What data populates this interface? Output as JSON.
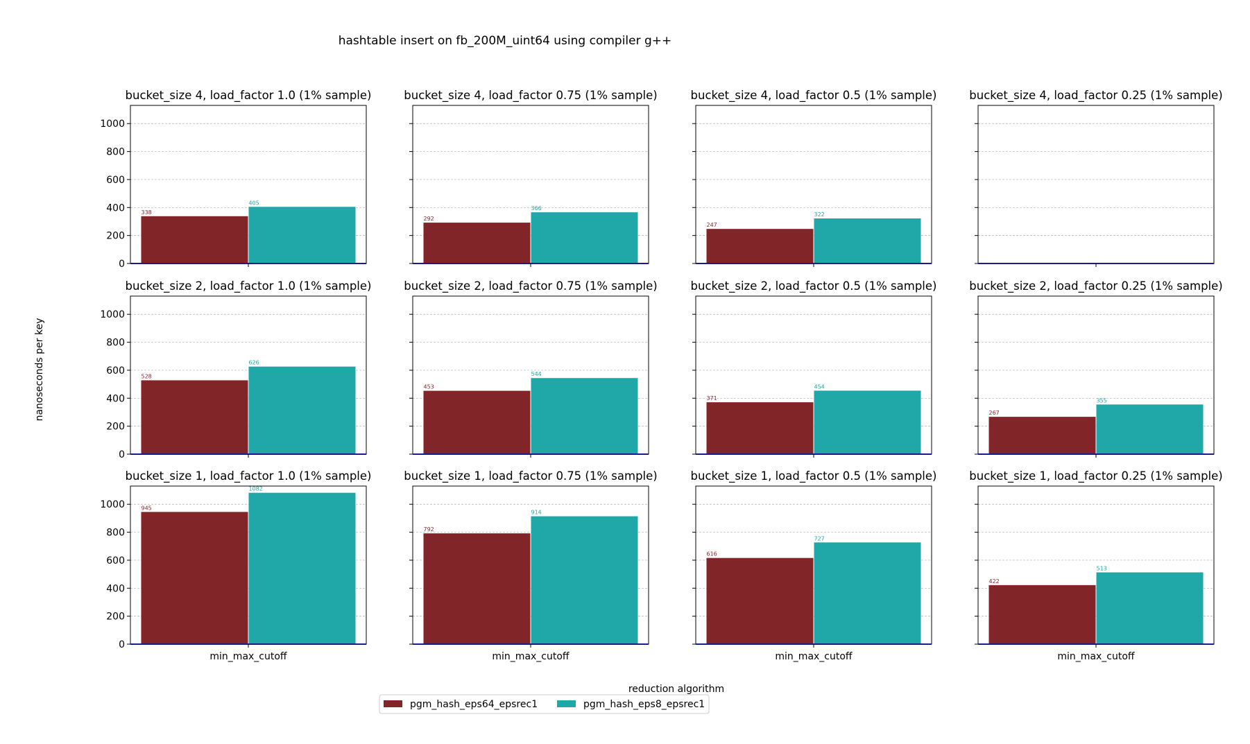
{
  "figure": {
    "title": "hashtable insert on fb_200M_uint64 using compiler g++",
    "ylabel": "nanoseconds per key",
    "legend_title": "reduction algorithm"
  },
  "colors": {
    "pgm_hash_eps64_epsrec1": "#822528",
    "pgm_hash_eps8_epsrec1": "#20a7a7",
    "baseline": "#1a1a8c",
    "grid": "#b0b0b0"
  },
  "chart_data": {
    "type": "bar",
    "categories": [
      "min_max_cutoff"
    ],
    "ylim": [
      0,
      1130
    ],
    "yticks": [
      0,
      200,
      400,
      600,
      800,
      1000
    ],
    "grid": "horizontal-dashed",
    "legend_placement": "bottom-center",
    "series": [
      {
        "name": "pgm_hash_eps64_epsrec1"
      },
      {
        "name": "pgm_hash_eps8_epsrec1"
      }
    ],
    "xlabel": "min_max_cutoff",
    "panels": [
      {
        "title": "bucket_size 4, load_factor 1.0 (1% sample)",
        "values": [
          338,
          405
        ]
      },
      {
        "title": "bucket_size 4, load_factor 0.75 (1% sample)",
        "values": [
          292,
          366
        ]
      },
      {
        "title": "bucket_size 4, load_factor 0.5 (1% sample)",
        "values": [
          247,
          322
        ]
      },
      {
        "title": "bucket_size 4, load_factor 0.25 (1% sample)",
        "values": []
      },
      {
        "title": "bucket_size 2, load_factor 1.0 (1% sample)",
        "values": [
          528,
          626
        ]
      },
      {
        "title": "bucket_size 2, load_factor 0.75 (1% sample)",
        "values": [
          453,
          544
        ]
      },
      {
        "title": "bucket_size 2, load_factor 0.5 (1% sample)",
        "values": [
          371,
          454
        ]
      },
      {
        "title": "bucket_size 2, load_factor 0.25 (1% sample)",
        "values": [
          267,
          355
        ]
      },
      {
        "title": "bucket_size 1, load_factor 1.0 (1% sample)",
        "values": [
          945,
          1082
        ]
      },
      {
        "title": "bucket_size 1, load_factor 0.75 (1% sample)",
        "values": [
          792,
          914
        ]
      },
      {
        "title": "bucket_size 1, load_factor 0.5 (1% sample)",
        "values": [
          616,
          727
        ]
      },
      {
        "title": "bucket_size 1, load_factor 0.25 (1% sample)",
        "values": [
          422,
          513
        ]
      }
    ]
  }
}
